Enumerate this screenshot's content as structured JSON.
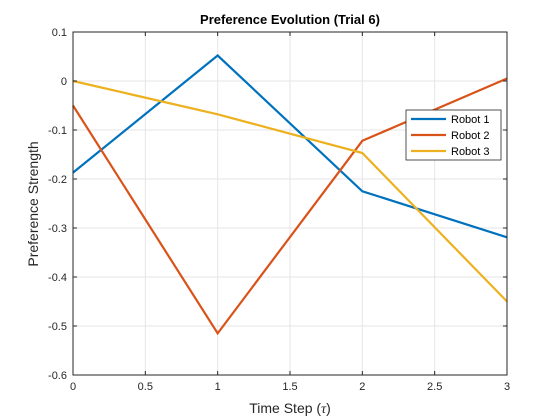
{
  "chart_data": {
    "type": "line",
    "title": "Preference Evolution (Trial 6)",
    "xlabel": "Time Step (",
    "xlabel_symbol": "τ",
    "xlabel_suffix": ")",
    "ylabel": "Preference Strength",
    "xlim": [
      0,
      3
    ],
    "ylim": [
      -0.6,
      0.1
    ],
    "xticks": [
      "0",
      "0.5",
      "1",
      "1.5",
      "2",
      "2.5",
      "3"
    ],
    "yticks": [
      "-0.6",
      "-0.5",
      "-0.4",
      "-0.3",
      "-0.2",
      "-0.1",
      "0",
      "0.1"
    ],
    "grid": true,
    "legend_position": "right",
    "x": [
      0,
      1,
      2,
      3
    ],
    "series": [
      {
        "name": "Robot 1",
        "color": "#0072bd",
        "values": [
          -0.187,
          0.052,
          -0.225,
          -0.319
        ]
      },
      {
        "name": "Robot 2",
        "color": "#d95319",
        "values": [
          -0.05,
          -0.515,
          -0.122,
          0.005
        ]
      },
      {
        "name": "Robot 3",
        "color": "#edb120",
        "values": [
          0.0,
          -0.068,
          -0.147,
          -0.45
        ]
      }
    ]
  }
}
